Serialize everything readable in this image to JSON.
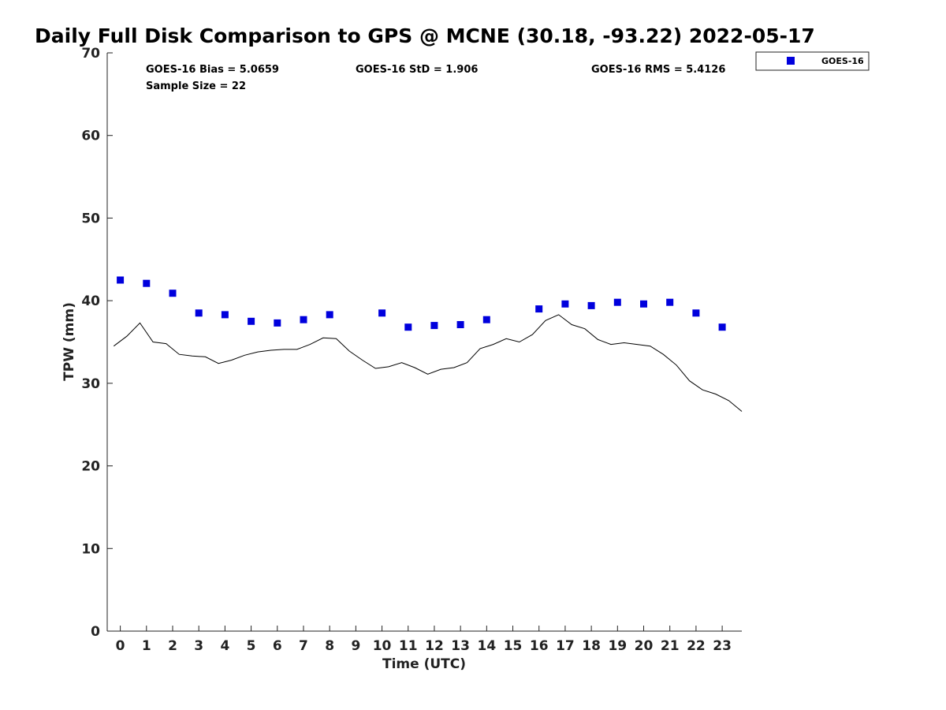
{
  "chart_data": {
    "type": "scatter",
    "title": "Daily Full Disk Comparison to GPS @ MCNE (30.18, -93.22) 2022-05-17",
    "xlabel": "Time (UTC)",
    "ylabel": "TPW (mm)",
    "xlim": [
      -0.5,
      23.75
    ],
    "ylim": [
      0,
      70
    ],
    "x_ticks": [
      0,
      1,
      2,
      3,
      4,
      5,
      6,
      7,
      8,
      9,
      10,
      11,
      12,
      13,
      14,
      15,
      16,
      17,
      18,
      19,
      20,
      21,
      22,
      23
    ],
    "y_ticks": [
      0,
      10,
      20,
      30,
      40,
      50,
      60,
      70
    ],
    "grid": false,
    "legend_position": "outside-top-right",
    "stats": {
      "bias": "GOES-16 Bias = 5.0659",
      "std": "GOES-16 StD = 1.906",
      "rms": "GOES-16 RMS = 5.4126",
      "sample": "Sample Size = 22"
    },
    "series": [
      {
        "name": "GOES-16",
        "kind": "markers",
        "marker": "square",
        "color": "#0000dd",
        "x": [
          0,
          1,
          2,
          3,
          4,
          5,
          6,
          7,
          8,
          10,
          11,
          12,
          13,
          14,
          16,
          17,
          18,
          19,
          20,
          21,
          22,
          23
        ],
        "y": [
          42.5,
          42.1,
          40.9,
          38.5,
          38.3,
          37.5,
          37.3,
          37.7,
          38.3,
          38.5,
          36.8,
          37.0,
          37.1,
          37.7,
          39.0,
          39.6,
          39.4,
          39.8,
          39.6,
          39.8,
          38.5,
          36.8
        ]
      },
      {
        "kind": "line",
        "color": "#000000",
        "x": [
          -0.25,
          0.25,
          0.75,
          1.25,
          1.75,
          2.25,
          2.75,
          3.25,
          3.75,
          4.25,
          4.75,
          5.25,
          5.75,
          6.25,
          6.75,
          7.25,
          7.75,
          8.25,
          8.75,
          9.25,
          9.75,
          10.25,
          10.75,
          11.25,
          11.75,
          12.25,
          12.75,
          13.25,
          13.75,
          14.25,
          14.75,
          15.25,
          15.75,
          16.25,
          16.75,
          17.25,
          17.75,
          18.25,
          18.75,
          19.25,
          19.75,
          20.25,
          20.75,
          21.25,
          21.75,
          22.25,
          22.75,
          23.25,
          23.75
        ],
        "y": [
          34.5,
          35.7,
          37.3,
          35.0,
          34.8,
          33.5,
          33.3,
          33.2,
          32.4,
          32.8,
          33.4,
          33.8,
          34.0,
          34.1,
          34.1,
          34.7,
          35.5,
          35.4,
          33.9,
          32.8,
          31.8,
          32.0,
          32.5,
          31.9,
          31.1,
          31.7,
          31.9,
          32.5,
          34.2,
          34.7,
          35.4,
          35.0,
          35.9,
          37.6,
          38.3,
          37.1,
          36.6,
          35.3,
          34.7,
          34.9,
          34.7,
          34.5,
          33.5,
          32.2,
          30.3,
          29.2,
          28.7,
          27.9,
          26.6
        ]
      }
    ]
  }
}
